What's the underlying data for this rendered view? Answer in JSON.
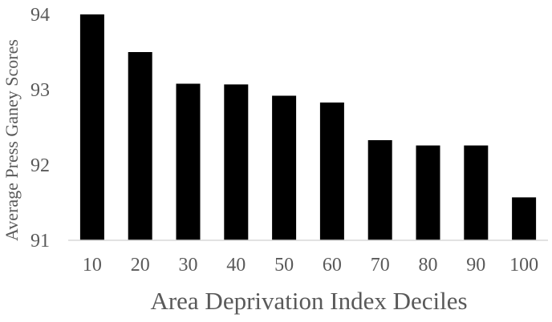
{
  "chart_data": {
    "type": "bar",
    "title": "",
    "xlabel": "Area Deprivation Index Deciles",
    "ylabel": "Average Press Ganey Scores",
    "categories": [
      "10",
      "20",
      "30",
      "40",
      "50",
      "60",
      "70",
      "80",
      "90",
      "100"
    ],
    "values": [
      94.0,
      93.5,
      93.08,
      93.07,
      92.92,
      92.83,
      92.33,
      92.26,
      92.26,
      91.57
    ],
    "ylim": [
      91,
      94
    ],
    "yticks": [
      "91",
      "92",
      "93",
      "94"
    ],
    "grid": false,
    "legend": "none",
    "bar_color": "#000000",
    "axis_color": "#d9d9d9",
    "text_color": "#595959"
  }
}
